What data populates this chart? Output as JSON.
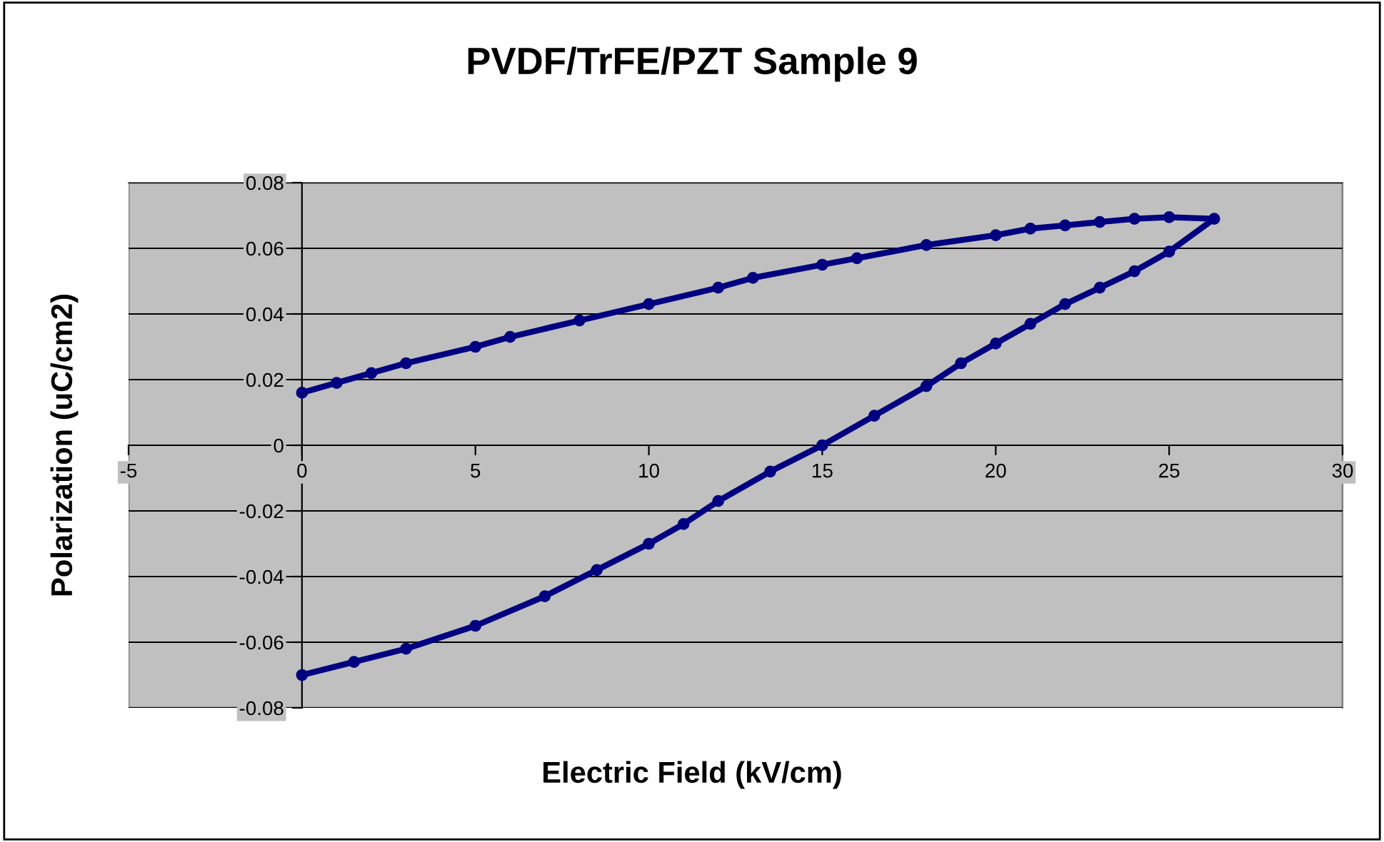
{
  "chart_data": {
    "type": "line",
    "title": "PVDF/TrFE/PZT Sample 9",
    "xlabel": "Electric Field (kV/cm)",
    "ylabel": "Polarization (uC/cm2)",
    "series": [
      {
        "color": "#000080",
        "x": [
          0,
          1.5,
          3,
          5,
          7,
          8.5,
          10,
          11,
          12,
          13.5,
          15,
          16.5,
          18,
          19,
          20,
          21,
          22,
          23,
          24,
          25,
          26.3,
          25,
          24,
          23,
          22,
          21,
          20,
          18,
          16,
          15,
          13,
          12,
          10,
          8,
          6,
          5,
          3,
          2,
          1,
          0
        ],
        "values": [
          -0.07,
          -0.066,
          -0.062,
          -0.055,
          -0.046,
          -0.038,
          -0.03,
          -0.024,
          -0.017,
          -0.008,
          0.0,
          0.009,
          0.018,
          0.025,
          0.031,
          0.037,
          0.043,
          0.048,
          0.053,
          0.059,
          0.069,
          0.0695,
          0.069,
          0.068,
          0.067,
          0.066,
          0.064,
          0.061,
          0.057,
          0.055,
          0.051,
          0.048,
          0.043,
          0.038,
          0.033,
          0.03,
          0.025,
          0.022,
          0.019,
          0.016
        ]
      }
    ],
    "xlim": [
      -5,
      30
    ],
    "xticks": [
      -5,
      0,
      5,
      10,
      15,
      20,
      25,
      30
    ],
    "ylim": [
      -0.08,
      0.08
    ],
    "yticks": [
      {
        "value": -0.08,
        "label": "-0.08"
      },
      {
        "value": -0.06,
        "label": "-0.06"
      },
      {
        "value": -0.04,
        "label": "-0.04"
      },
      {
        "value": -0.02,
        "label": "-0.02"
      },
      0,
      {
        "value": 0.02,
        "label": "0.02"
      },
      {
        "value": 0.04,
        "label": "0.04"
      },
      {
        "value": 0.06,
        "label": "0.06"
      },
      {
        "value": 0.08,
        "label": "0.08"
      }
    ],
    "grid": "y",
    "marker": "circle",
    "line_style": "solid"
  }
}
